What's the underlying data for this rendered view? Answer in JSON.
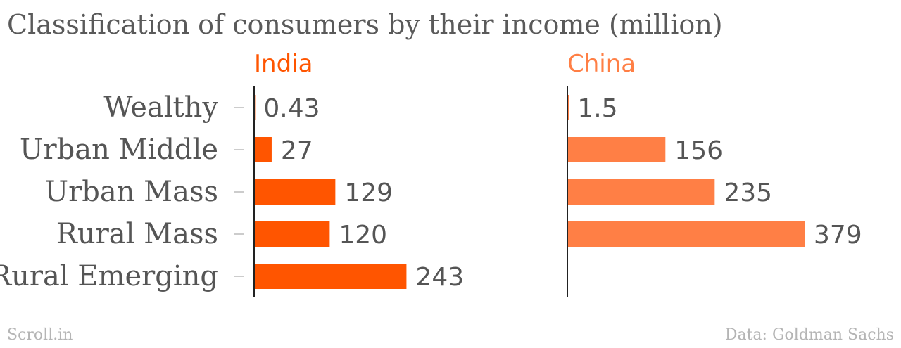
{
  "title": "Classification of consumers by their income (million)",
  "footer": {
    "source_left": "Scroll.in",
    "source_right": "Data: Goldman Sachs"
  },
  "colors": {
    "title": "#5a5a5a",
    "category_label": "#555555",
    "value_label": "#555555",
    "footer": "#b5b5b5",
    "axis": "#222222",
    "tick": "#cccccc"
  },
  "chart_data": {
    "type": "bar",
    "orientation": "horizontal",
    "categories": [
      "Wealthy",
      "Urban Middle",
      "Urban Mass",
      "Rural Mass",
      "Rural Emerging"
    ],
    "series": [
      {
        "name": "India",
        "values": [
          0.43,
          27,
          129,
          120,
          243
        ],
        "value_labels": [
          "0.43",
          "27",
          "129",
          "120",
          "243"
        ],
        "color": "#ff5500"
      },
      {
        "name": "China",
        "values": [
          1.5,
          156,
          235,
          379,
          null
        ],
        "value_labels": [
          "1.5",
          "156",
          "235",
          "379",
          ""
        ],
        "color": "#ff7f45"
      }
    ],
    "xlim": [
      0,
      379
    ],
    "grid": false,
    "legend": "panel-titles"
  }
}
